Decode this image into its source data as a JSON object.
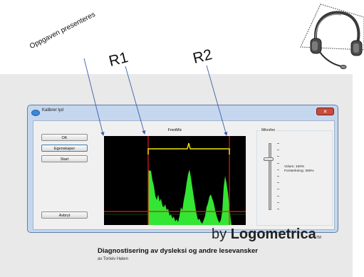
{
  "annotations": {
    "task_presented": "Oppgaven presenteres",
    "r1": "R1",
    "r2": "R2"
  },
  "dialog": {
    "title": "Kalibrer lyd",
    "buttons": {
      "ok": "OK",
      "properties": "Egenskaper",
      "start": "Start",
      "cancel": "Avbryt"
    },
    "scope_label": "FrontMic",
    "microphone": {
      "group_title": "Mikrofon",
      "volume_label": "Volum: 100%",
      "boost_label": "Forsterkning: 300%",
      "volume_level": 1.0
    },
    "colors": {
      "signal": "#33e633",
      "threshold": "#e01c1c",
      "brace": "#f2e40a",
      "scope_bg": "#000000"
    }
  },
  "footer": {
    "brand_prefix": "by ",
    "brand_name": "Logometrica",
    "brand_suffix": "TM",
    "subtitle": "Diagnostisering av dysleksi og andre lesevansker",
    "author": "av Torleiv Høien"
  },
  "icons": {
    "headset": "headset-icon",
    "title": "window-icon",
    "close": "close-icon"
  }
}
